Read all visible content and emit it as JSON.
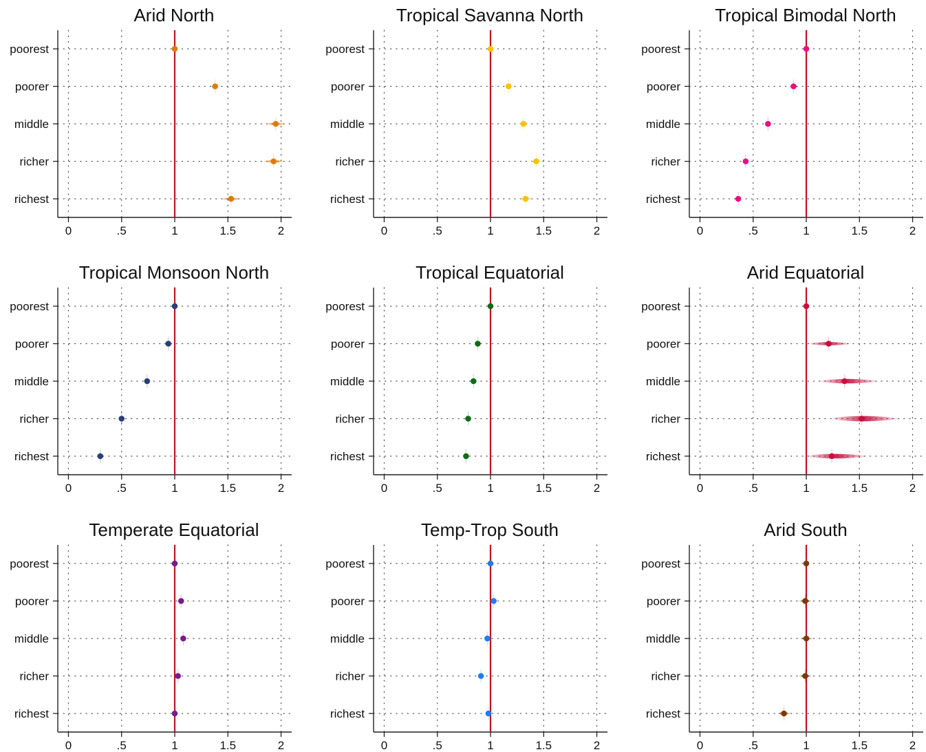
{
  "chart_data": [
    {
      "type": "scatter",
      "title": "Arid North",
      "color": "#e07b0a",
      "categories": [
        "poorest",
        "poorer",
        "middle",
        "richer",
        "richest"
      ],
      "values": [
        1.0,
        1.38,
        1.95,
        1.93,
        1.53
      ],
      "ci": [
        [
          1.0,
          1.0
        ],
        [
          1.34,
          1.42
        ],
        [
          1.84,
          2.06
        ],
        [
          1.82,
          2.04
        ],
        [
          1.42,
          1.64
        ]
      ],
      "xlim": [
        -0.1,
        2.1
      ],
      "xticks": [
        "0",
        ".5",
        "1",
        "1.5",
        "2"
      ],
      "xtick_values": [
        0,
        0.5,
        1,
        1.5,
        2
      ],
      "reference_line": 1,
      "grid": true
    },
    {
      "type": "scatter",
      "title": "Tropical Savanna North",
      "color": "#f5c400",
      "categories": [
        "poorest",
        "poorer",
        "middle",
        "richer",
        "richest"
      ],
      "values": [
        1.0,
        1.17,
        1.31,
        1.43,
        1.33
      ],
      "ci": [
        [
          1.0,
          1.0
        ],
        [
          1.14,
          1.2
        ],
        [
          1.26,
          1.36
        ],
        [
          1.37,
          1.49
        ],
        [
          1.26,
          1.4
        ]
      ],
      "xlim": [
        -0.1,
        2.1
      ],
      "xticks": [
        "0",
        ".5",
        "1",
        "1.5",
        "2"
      ],
      "xtick_values": [
        0,
        0.5,
        1,
        1.5,
        2
      ],
      "reference_line": 1,
      "grid": true
    },
    {
      "type": "scatter",
      "title": "Tropical Bimodal North",
      "color": "#e8117f",
      "categories": [
        "poorest",
        "poorer",
        "middle",
        "richer",
        "richest"
      ],
      "values": [
        1.0,
        0.88,
        0.64,
        0.43,
        0.36
      ],
      "ci": [
        [
          1.0,
          1.0
        ],
        [
          0.83,
          0.93
        ],
        [
          0.61,
          0.67
        ],
        [
          0.41,
          0.45
        ],
        [
          0.34,
          0.38
        ]
      ],
      "xlim": [
        -0.1,
        2.1
      ],
      "xticks": [
        "0",
        ".5",
        "1",
        "1.5",
        "2"
      ],
      "xtick_values": [
        0,
        0.5,
        1,
        1.5,
        2
      ],
      "reference_line": 1,
      "grid": true
    },
    {
      "type": "scatter",
      "title": "Tropical Monsoon North",
      "color": "#2a3f7a",
      "categories": [
        "poorest",
        "poorer",
        "middle",
        "richer",
        "richest"
      ],
      "values": [
        1.0,
        0.94,
        0.74,
        0.5,
        0.3
      ],
      "ci": [
        [
          1.0,
          1.0
        ],
        [
          0.89,
          0.99
        ],
        [
          0.71,
          0.77
        ],
        [
          0.48,
          0.52
        ],
        [
          0.28,
          0.32
        ]
      ],
      "xlim": [
        -0.1,
        2.1
      ],
      "xticks": [
        "0",
        ".5",
        "1",
        "1.5",
        "2"
      ],
      "xtick_values": [
        0,
        0.5,
        1,
        1.5,
        2
      ],
      "reference_line": 1,
      "grid": true
    },
    {
      "type": "scatter",
      "title": "Tropical Equatorial",
      "color": "#106b18",
      "categories": [
        "poorest",
        "poorer",
        "middle",
        "richer",
        "richest"
      ],
      "values": [
        1.0,
        0.88,
        0.84,
        0.79,
        0.77
      ],
      "ci": [
        [
          1.0,
          1.0
        ],
        [
          0.85,
          0.91
        ],
        [
          0.81,
          0.87
        ],
        [
          0.76,
          0.82
        ],
        [
          0.74,
          0.8
        ]
      ],
      "xlim": [
        -0.1,
        2.1
      ],
      "xticks": [
        "0",
        ".5",
        "1",
        "1.5",
        "2"
      ],
      "xtick_values": [
        0,
        0.5,
        1,
        1.5,
        2
      ],
      "reference_line": 1,
      "grid": true
    },
    {
      "type": "scatter",
      "title": "Arid Equatorial",
      "color": "#c8103e",
      "categories": [
        "poorest",
        "poorer",
        "middle",
        "richer",
        "richest"
      ],
      "values": [
        1.0,
        1.21,
        1.36,
        1.52,
        1.24
      ],
      "ci": [
        [
          1.0,
          1.0
        ],
        [
          1.0,
          1.44
        ],
        [
          1.1,
          1.7
        ],
        [
          1.2,
          1.9
        ],
        [
          0.98,
          1.6
        ]
      ],
      "xlim": [
        -0.1,
        2.1
      ],
      "xticks": [
        "0",
        ".5",
        "1",
        "1.5",
        "2"
      ],
      "xtick_values": [
        0,
        0.5,
        1,
        1.5,
        2
      ],
      "reference_line": 1,
      "grid": true
    },
    {
      "type": "scatter",
      "title": "Temperate Equatorial",
      "color": "#7a1a8c",
      "categories": [
        "poorest",
        "poorer",
        "middle",
        "richer",
        "richest"
      ],
      "values": [
        1.0,
        1.06,
        1.08,
        1.03,
        1.0
      ],
      "ci": [
        [
          1.0,
          1.0
        ],
        [
          1.03,
          1.09
        ],
        [
          1.05,
          1.11
        ],
        [
          1.0,
          1.06
        ],
        [
          0.97,
          1.03
        ]
      ],
      "xlim": [
        -0.1,
        2.1
      ],
      "xticks": [
        "0",
        ".5",
        "1",
        "1.5",
        "2"
      ],
      "xtick_values": [
        0,
        0.5,
        1,
        1.5,
        2
      ],
      "reference_line": 1,
      "grid": true
    },
    {
      "type": "scatter",
      "title": "Temp-Trop South",
      "color": "#1f7fe8",
      "categories": [
        "poorest",
        "poorer",
        "middle",
        "richer",
        "richest"
      ],
      "values": [
        1.0,
        1.03,
        0.97,
        0.91,
        0.98
      ],
      "ci": [
        [
          1.0,
          1.0
        ],
        [
          1.01,
          1.05
        ],
        [
          0.95,
          0.99
        ],
        [
          0.89,
          0.93
        ],
        [
          0.96,
          1.0
        ]
      ],
      "xlim": [
        -0.1,
        2.1
      ],
      "xticks": [
        "0",
        ".5",
        "1",
        "1.5",
        "2"
      ],
      "xtick_values": [
        0,
        0.5,
        1,
        1.5,
        2
      ],
      "reference_line": 1,
      "grid": true
    },
    {
      "type": "scatter",
      "title": "Arid South",
      "color": "#7a3b0a",
      "categories": [
        "poorest",
        "poorer",
        "middle",
        "richer",
        "richest"
      ],
      "values": [
        1.0,
        0.99,
        1.0,
        0.99,
        0.79
      ],
      "ci": [
        [
          1.0,
          1.0
        ],
        [
          0.92,
          1.06
        ],
        [
          0.93,
          1.07
        ],
        [
          0.92,
          1.06
        ],
        [
          0.72,
          0.86
        ]
      ],
      "xlim": [
        -0.1,
        2.1
      ],
      "xticks": [
        "0",
        ".5",
        "1",
        "1.5",
        "2"
      ],
      "xtick_values": [
        0,
        0.5,
        1,
        1.5,
        2
      ],
      "reference_line": 1,
      "grid": true
    }
  ],
  "colors": {
    "reference_line": "#c0102a",
    "axis": "#222222",
    "grid": "#555555"
  }
}
